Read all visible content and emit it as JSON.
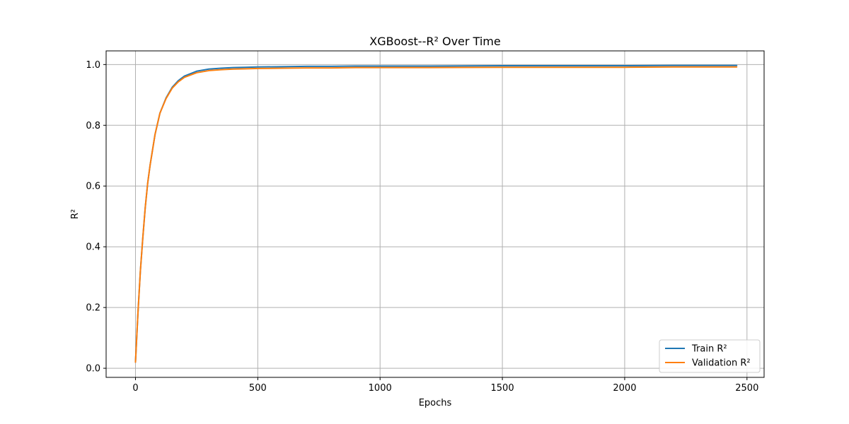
{
  "chart_data": {
    "type": "line",
    "title": "XGBoost--R² Over Time",
    "xlabel": "Epochs",
    "ylabel": "R²",
    "xlim": [
      -120,
      2570
    ],
    "ylim": [
      -0.03,
      1.045
    ],
    "xticks": [
      0,
      500,
      1000,
      1500,
      2000,
      2500
    ],
    "xtick_labels": [
      "0",
      "500",
      "1000",
      "1500",
      "2000",
      "2500"
    ],
    "yticks": [
      0.0,
      0.2,
      0.4,
      0.6,
      0.8,
      1.0
    ],
    "ytick_labels": [
      "0.0",
      "0.2",
      "0.4",
      "0.6",
      "0.8",
      "1.0"
    ],
    "grid": true,
    "legend_position": "lower-right",
    "series": [
      {
        "name": "Train R²",
        "color": "#1f77b4",
        "x": [
          0,
          10,
          20,
          30,
          40,
          50,
          60,
          80,
          100,
          125,
          150,
          175,
          200,
          250,
          300,
          350,
          400,
          450,
          500,
          600,
          700,
          800,
          900,
          1000,
          1200,
          1500,
          1800,
          2000,
          2200,
          2458
        ],
        "y": [
          0.02,
          0.18,
          0.32,
          0.43,
          0.53,
          0.61,
          0.67,
          0.77,
          0.84,
          0.89,
          0.925,
          0.947,
          0.962,
          0.978,
          0.985,
          0.988,
          0.99,
          0.991,
          0.992,
          0.993,
          0.994,
          0.994,
          0.995,
          0.995,
          0.995,
          0.996,
          0.996,
          0.996,
          0.997,
          0.997
        ]
      },
      {
        "name": "Validation R²",
        "color": "#ff7f0e",
        "x": [
          0,
          10,
          20,
          30,
          40,
          50,
          60,
          80,
          100,
          125,
          150,
          175,
          200,
          250,
          300,
          350,
          400,
          450,
          500,
          600,
          700,
          800,
          900,
          1000,
          1200,
          1500,
          1800,
          2000,
          2200,
          2458
        ],
        "y": [
          0.02,
          0.18,
          0.32,
          0.43,
          0.53,
          0.61,
          0.67,
          0.77,
          0.84,
          0.888,
          0.922,
          0.943,
          0.958,
          0.973,
          0.98,
          0.983,
          0.985,
          0.986,
          0.987,
          0.988,
          0.989,
          0.989,
          0.99,
          0.99,
          0.99,
          0.991,
          0.991,
          0.991,
          0.992,
          0.992
        ]
      }
    ]
  }
}
